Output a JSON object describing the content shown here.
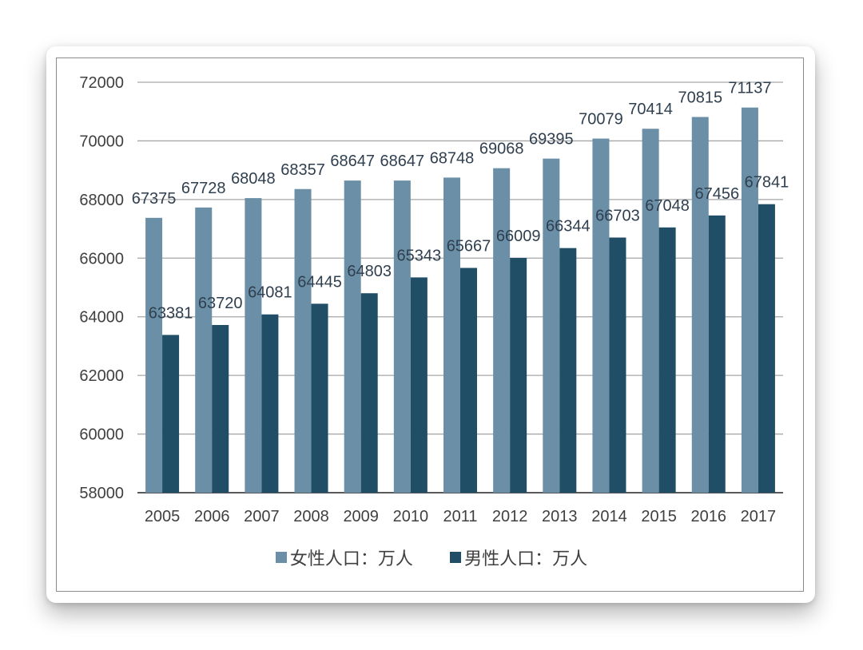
{
  "chart_data": {
    "type": "bar",
    "title": "",
    "xlabel": "",
    "ylabel": "",
    "ylim": [
      58000,
      72000
    ],
    "yticks": [
      58000,
      60000,
      62000,
      64000,
      66000,
      68000,
      70000,
      72000
    ],
    "grid": true,
    "legend_position": "bottom",
    "categories": [
      "2005",
      "2006",
      "2007",
      "2008",
      "2009",
      "2010",
      "2011",
      "2012",
      "2013",
      "2014",
      "2015",
      "2016",
      "2017"
    ],
    "series": [
      {
        "name": "女性人口：万人",
        "color": "#6a8fa6",
        "values": [
          67375,
          67728,
          68048,
          68357,
          68647,
          68647,
          68748,
          69068,
          69395,
          70079,
          70414,
          70815,
          71137
        ]
      },
      {
        "name": "男性人口：万人",
        "color": "#1f4e66",
        "values": [
          63381,
          63720,
          64081,
          64445,
          64803,
          65343,
          65667,
          66009,
          66344,
          66703,
          67048,
          67456,
          67841
        ]
      }
    ]
  }
}
